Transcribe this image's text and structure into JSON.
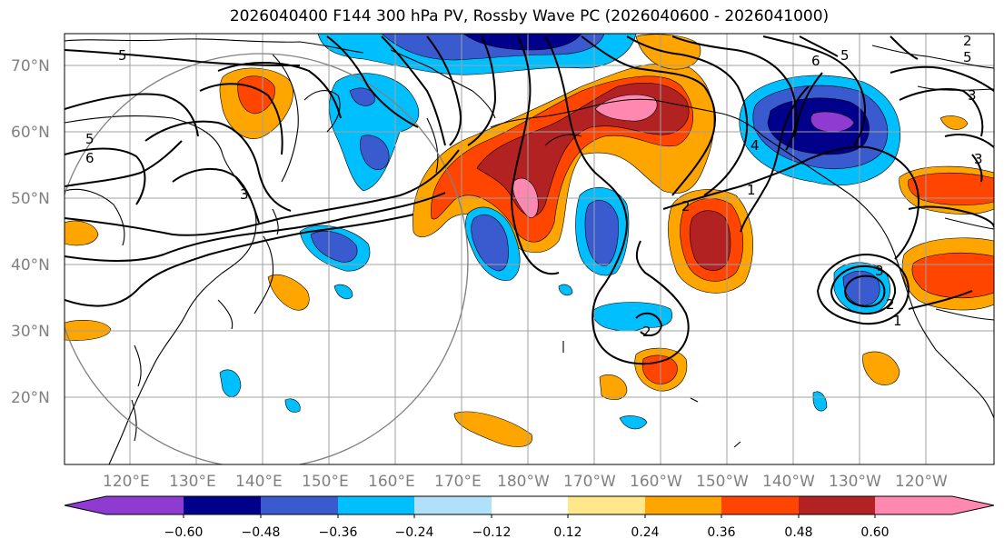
{
  "title": "2026040400 F144 300 hPa PV, Rossby Wave PC (2026040600 - 2026041000)",
  "colors": {
    "p60": "#8f3ad1",
    "p48": "#00008b",
    "p36": "#3a5bd0",
    "p24": "#00bfff",
    "p12": "#b0e0fa",
    "zero": "#ffffff",
    "q12": "#ffe88a",
    "q24": "#ffa500",
    "q36": "#ff4500",
    "q48": "#b22222",
    "q60": "#ff88b0"
  },
  "map": {
    "lat_labels": [
      "70°N",
      "60°N",
      "50°N",
      "40°N",
      "30°N",
      "20°N"
    ],
    "lon_labels": [
      "120°E",
      "130°E",
      "140°E",
      "150°E",
      "160°E",
      "170°E",
      "180°W",
      "170°W",
      "160°W",
      "150°W",
      "140°W",
      "130°W",
      "120°W"
    ],
    "contour_labels": [
      "5",
      "5",
      "6",
      "3",
      "2",
      "1",
      "4",
      "3",
      "6",
      "5",
      "5",
      "3",
      "3",
      "2",
      "1",
      "2",
      "2"
    ]
  },
  "colorbar": {
    "ticks": [
      "−0.60",
      "−0.48",
      "−0.36",
      "−0.24",
      "−0.12",
      "0.12",
      "0.24",
      "0.36",
      "0.48",
      "0.60"
    ]
  }
}
